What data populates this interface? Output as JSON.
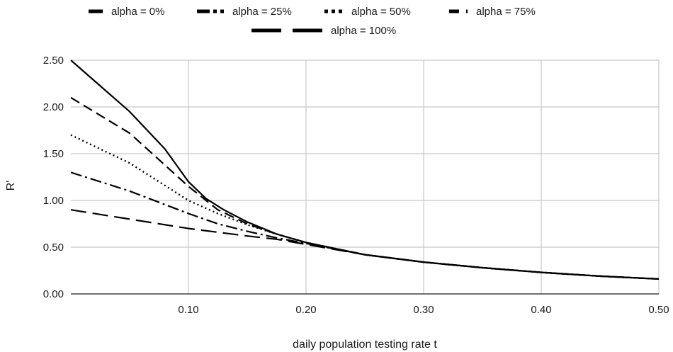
{
  "chart_data": {
    "type": "line",
    "xlabel": "daily population testing rate t",
    "ylabel": "R'",
    "xlim": [
      0.0,
      0.5
    ],
    "ylim": [
      0.0,
      2.5
    ],
    "x_ticks": [
      "0.10",
      "0.20",
      "0.30",
      "0.40",
      "0.50"
    ],
    "y_ticks": [
      "0.00",
      "0.50",
      "1.00",
      "1.50",
      "2.00",
      "2.50"
    ],
    "grid": true,
    "legend_position": "top",
    "line_color": "#000000",
    "grid_color": "#c8c8c8",
    "series": [
      {
        "name": "alpha = 0%",
        "style": "long-dash",
        "x": [
          0.0,
          0.05,
          0.1,
          0.15,
          0.175,
          0.2,
          0.25,
          0.3,
          0.35,
          0.4,
          0.45,
          0.5
        ],
        "y": [
          0.9,
          0.8,
          0.7,
          0.62,
          0.585,
          0.53,
          0.42,
          0.34,
          0.28,
          0.23,
          0.19,
          0.16
        ]
      },
      {
        "name": "alpha = 25%",
        "style": "dash-dot",
        "x": [
          0.0,
          0.05,
          0.1,
          0.125,
          0.15,
          0.175,
          0.2,
          0.25,
          0.3,
          0.35,
          0.4,
          0.45,
          0.5
        ],
        "y": [
          1.3,
          1.1,
          0.86,
          0.75,
          0.67,
          0.6,
          0.54,
          0.42,
          0.34,
          0.28,
          0.23,
          0.19,
          0.16
        ]
      },
      {
        "name": "alpha = 50%",
        "style": "dotted",
        "x": [
          0.0,
          0.05,
          0.1,
          0.125,
          0.15,
          0.175,
          0.2,
          0.25,
          0.3,
          0.35,
          0.4,
          0.45,
          0.5
        ],
        "y": [
          1.7,
          1.4,
          1.0,
          0.86,
          0.74,
          0.64,
          0.55,
          0.42,
          0.34,
          0.28,
          0.23,
          0.19,
          0.16
        ]
      },
      {
        "name": "alpha = 75%",
        "style": "dashed",
        "x": [
          0.0,
          0.05,
          0.1,
          0.125,
          0.15,
          0.175,
          0.2,
          0.25,
          0.3,
          0.35,
          0.4,
          0.45,
          0.5
        ],
        "y": [
          2.1,
          1.72,
          1.15,
          0.9,
          0.75,
          0.64,
          0.55,
          0.42,
          0.34,
          0.28,
          0.23,
          0.19,
          0.16
        ]
      },
      {
        "name": "alpha = 100%",
        "style": "solid",
        "x": [
          0.0,
          0.05,
          0.08,
          0.1,
          0.115,
          0.13,
          0.15,
          0.175,
          0.2,
          0.25,
          0.3,
          0.35,
          0.4,
          0.45,
          0.5
        ],
        "y": [
          2.5,
          1.95,
          1.55,
          1.2,
          1.02,
          0.9,
          0.77,
          0.64,
          0.55,
          0.42,
          0.34,
          0.28,
          0.23,
          0.19,
          0.16
        ]
      }
    ]
  }
}
